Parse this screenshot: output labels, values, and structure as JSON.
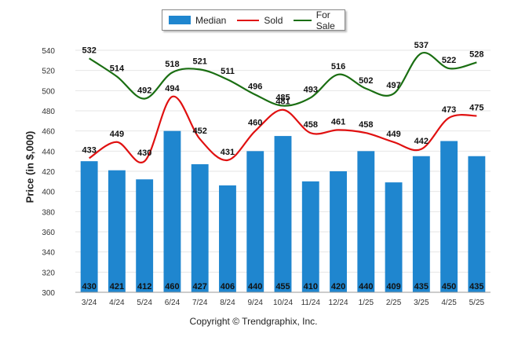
{
  "chart_data": {
    "type": "bar+line",
    "categories": [
      "3/24",
      "4/24",
      "5/24",
      "6/24",
      "7/24",
      "8/24",
      "9/24",
      "10/24",
      "11/24",
      "12/24",
      "1/25",
      "2/25",
      "3/25",
      "4/25",
      "5/25"
    ],
    "series": [
      {
        "name": "Median",
        "type": "bar",
        "color": "#1f86cf",
        "values": [
          430,
          421,
          412,
          460,
          427,
          406,
          440,
          455,
          410,
          420,
          440,
          409,
          435,
          450,
          435
        ]
      },
      {
        "name": "Sold",
        "type": "line",
        "color": "#e01010",
        "values": [
          433,
          449,
          430,
          494,
          452,
          431,
          460,
          481,
          458,
          461,
          458,
          449,
          442,
          473,
          475
        ]
      },
      {
        "name": "For Sale",
        "type": "line",
        "color": "#1a6e12",
        "values": [
          532,
          514,
          492,
          518,
          521,
          511,
          496,
          485,
          493,
          516,
          502,
          497,
          537,
          522,
          528
        ]
      }
    ],
    "ylabel": "Price (in $,000)",
    "ylim": [
      300,
      540
    ],
    "yticks": [
      300,
      320,
      340,
      360,
      380,
      400,
      420,
      440,
      460,
      480,
      500,
      520,
      540
    ],
    "grid": true,
    "legend": "top-center"
  },
  "copyright": "Copyright © Trendgraphix, Inc."
}
